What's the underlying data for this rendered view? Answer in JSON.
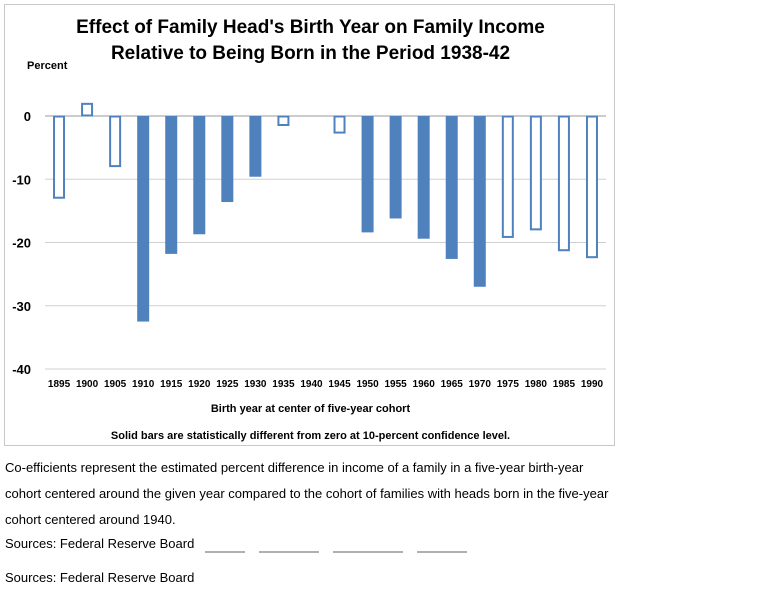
{
  "chart_data": {
    "type": "bar",
    "title_lines": [
      "Effect of Family Head's Birth Year on Family Income",
      "Relative to Being Born in the Period 1938-42"
    ],
    "ylabel": "Percent",
    "xlabel": "Birth year at center of five-year cohort",
    "note": "Solid bars are statistically different from zero at 10-percent confidence level.",
    "ylim": [
      -40,
      5
    ],
    "yticks": [
      0,
      -10,
      -20,
      -30,
      -40
    ],
    "categories": [
      "1895",
      "1900",
      "1905",
      "1910",
      "1915",
      "1920",
      "1925",
      "1930",
      "1935",
      "1940",
      "1945",
      "1950",
      "1955",
      "1960",
      "1965",
      "1970",
      "1975",
      "1980",
      "1985",
      "1990"
    ],
    "values": [
      -13,
      2,
      -8,
      -32.5,
      -21.8,
      -18.7,
      -13.6,
      -9.6,
      -1.5,
      null,
      -2.7,
      -18.4,
      -16.2,
      -19.4,
      -22.6,
      -27,
      -19.2,
      -18,
      -21.3,
      -22.4
    ],
    "significant": [
      false,
      false,
      false,
      true,
      true,
      true,
      true,
      true,
      false,
      null,
      false,
      true,
      true,
      true,
      true,
      true,
      false,
      false,
      false,
      false
    ],
    "colors": {
      "bar": "#4f81bd"
    },
    "grid": true
  },
  "caption": "Co-efficients represent the estimated percent difference in income of a family in a five-year birth-year cohort centered around the given year compared to the cohort of families with heads born in the five-year cohort centered around 1940.",
  "sources": [
    "Sources:  Federal Reserve Board",
    "Sources:  Federal Reserve Board"
  ]
}
